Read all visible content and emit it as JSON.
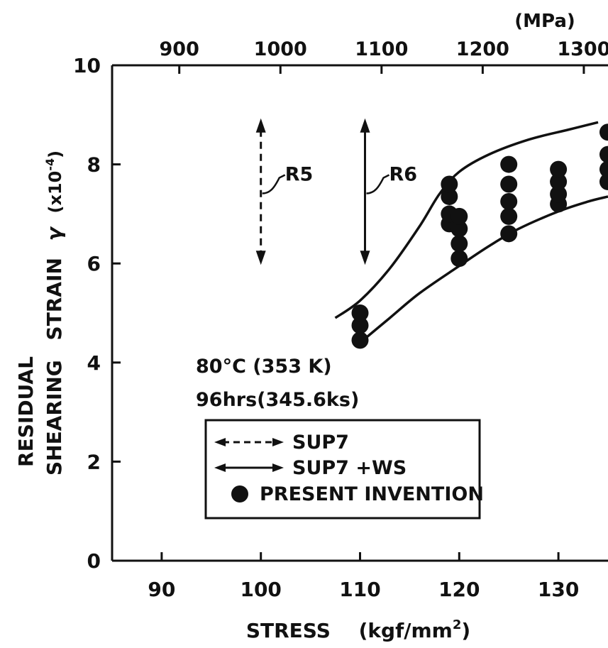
{
  "chart_data": {
    "type": "scatter",
    "xlabel": "STRESS",
    "xlabel_unit": "(kgf/mm",
    "xlabel_unit_sup": "2",
    "xlabel_unit_close": ")",
    "ylabel_line1": "RESIDUAL",
    "ylabel_line2": "SHEARING",
    "ylabel_strain": "STRAIN",
    "ylabel_symbol": "γ",
    "ylabel_factor": "(x10",
    "ylabel_factor_exp": "-4",
    "ylabel_factor_close": ")",
    "top_axis_unit": "(MPa)",
    "xlim": [
      85,
      135
    ],
    "ylim": [
      0,
      10
    ],
    "x_ticks": [
      90,
      100,
      110,
      120,
      130
    ],
    "x_tick_labels": [
      "90",
      "100",
      "110",
      "120",
      "130"
    ],
    "y_ticks": [
      0,
      2,
      4,
      6,
      8,
      10
    ],
    "y_tick_labels": [
      "0",
      "2",
      "4",
      "6",
      "8",
      "10"
    ],
    "top_ticks_mpa": [
      900,
      1000,
      1100,
      1200,
      1300
    ],
    "top_tick_labels": [
      "900",
      "1000",
      "1100",
      "1200",
      "1300"
    ],
    "condition_line1": "80°C (353 K)",
    "condition_line2": "96hrs(345.6ks)",
    "legend": [
      {
        "style": "dashed-arrow",
        "label": "SUP7"
      },
      {
        "style": "solid-arrow",
        "label": "SUP7 +WS"
      },
      {
        "style": "dot",
        "label": "PRESENT INVENTION"
      }
    ],
    "ranges": [
      {
        "label": "R5",
        "x": 100,
        "y_min": 6.0,
        "y_max": 8.9,
        "style": "dashed"
      },
      {
        "label": "R6",
        "x": 110.5,
        "y_min": 6.0,
        "y_max": 8.9,
        "style": "solid"
      }
    ],
    "upper_band": [
      [
        107.5,
        4.9
      ],
      [
        110,
        5.25
      ],
      [
        113,
        5.9
      ],
      [
        116,
        6.75
      ],
      [
        118,
        7.4
      ],
      [
        120,
        7.85
      ],
      [
        123,
        8.2
      ],
      [
        127,
        8.5
      ],
      [
        131,
        8.7
      ],
      [
        134,
        8.85
      ]
    ],
    "lower_band": [
      [
        110,
        4.4
      ],
      [
        113,
        4.9
      ],
      [
        116,
        5.4
      ],
      [
        120,
        5.95
      ],
      [
        123,
        6.35
      ],
      [
        126,
        6.7
      ],
      [
        130,
        7.05
      ],
      [
        133,
        7.25
      ],
      [
        135,
        7.35
      ]
    ],
    "points": [
      {
        "x": 110,
        "y": 4.45
      },
      {
        "x": 110,
        "y": 4.75
      },
      {
        "x": 110,
        "y": 5.0
      },
      {
        "x": 119,
        "y": 6.8
      },
      {
        "x": 119,
        "y": 7.0
      },
      {
        "x": 119,
        "y": 7.35
      },
      {
        "x": 119,
        "y": 7.6
      },
      {
        "x": 120,
        "y": 6.1
      },
      {
        "x": 120,
        "y": 6.4
      },
      {
        "x": 120,
        "y": 6.7
      },
      {
        "x": 120,
        "y": 6.95
      },
      {
        "x": 125,
        "y": 6.6
      },
      {
        "x": 125,
        "y": 6.95
      },
      {
        "x": 125,
        "y": 7.25
      },
      {
        "x": 125,
        "y": 7.6
      },
      {
        "x": 125,
        "y": 8.0
      },
      {
        "x": 130,
        "y": 7.2
      },
      {
        "x": 130,
        "y": 7.4
      },
      {
        "x": 130,
        "y": 7.65
      },
      {
        "x": 130,
        "y": 7.9
      },
      {
        "x": 135,
        "y": 7.65
      },
      {
        "x": 135,
        "y": 7.9
      },
      {
        "x": 135,
        "y": 8.2
      },
      {
        "x": 135,
        "y": 8.65
      }
    ]
  }
}
